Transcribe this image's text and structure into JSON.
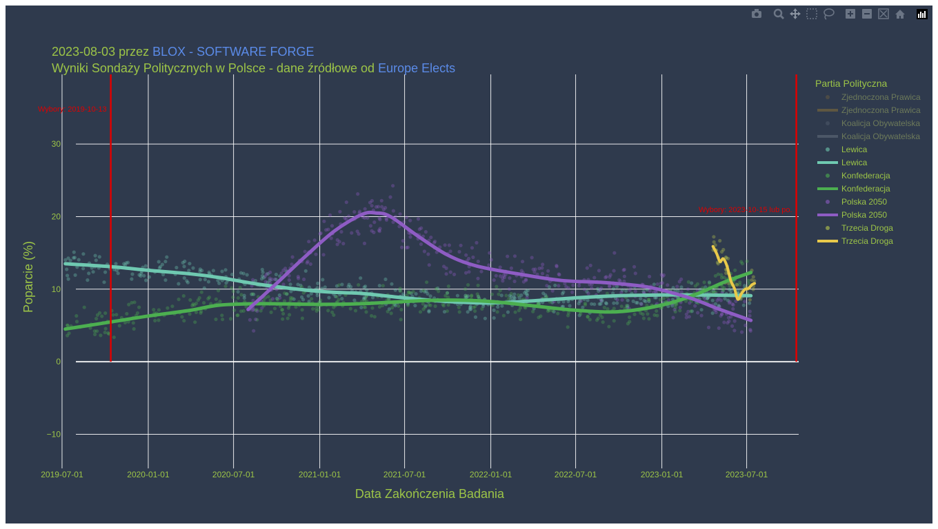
{
  "title": {
    "line1_prefix": "2023-08-03 przez ",
    "line1_link": "BLOX - SOFTWARE FORGE",
    "line2_prefix": "Wyniki Sondaży Politycznych w Polsce - dane źródłowe od ",
    "line2_link": "Europe Elects"
  },
  "modebar": {
    "buttons": [
      "camera-icon",
      "zoom-icon",
      "pan-icon",
      "box-select-icon",
      "lasso-select-icon",
      "zoom-in-icon",
      "zoom-out-icon",
      "autoscale-icon",
      "reset-axes-icon",
      "plotly-logo-icon"
    ]
  },
  "colors": {
    "background": "#2f3a4d",
    "text": "#8fbf3a",
    "link": "#5b8be8",
    "grid": "#ffffff",
    "election_line": "#e00000"
  },
  "chart_data": {
    "type": "scatter",
    "title": "Wyniki Sondaży Politycznych w Polsce - dane źródłowe od Europe Elects",
    "xlabel": "Data Zakończenia Badania",
    "ylabel": "Poparcie (%)",
    "x_type": "date",
    "xlim": [
      "2019-06-09",
      "2023-10-20"
    ],
    "ylim": [
      -14.7,
      39.6
    ],
    "xticks": [
      "2019-07-01",
      "2020-01-01",
      "2020-07-01",
      "2021-01-01",
      "2021-07-01",
      "2022-01-01",
      "2022-07-01",
      "2023-01-01",
      "2023-07-01"
    ],
    "yticks": [
      -10,
      0,
      10,
      20,
      30
    ],
    "grid": true,
    "legend_title": "Partia Polityczna",
    "legend_position": "right",
    "annotations": [
      {
        "text": "Wybory: 2019-10-13",
        "x": "2019-10-13"
      },
      {
        "text": "Wybory: 2023-10-15 lub po.",
        "x": "2023-10-15"
      }
    ],
    "legend": [
      {
        "label": "Zjednoczona Prawica",
        "kind": "markers",
        "color": "#9a7b33",
        "hidden": true
      },
      {
        "label": "Zjednoczona Prawica",
        "kind": "line",
        "color": "#9a7b33",
        "hidden": true
      },
      {
        "label": "Koalicja Obywatelska",
        "kind": "markers",
        "color": "#707a88",
        "hidden": true
      },
      {
        "label": "Koalicja Obywatelska",
        "kind": "line",
        "color": "#707a88",
        "hidden": true
      },
      {
        "label": "Lewica",
        "kind": "markers",
        "color": "#6fc9b1",
        "hidden": false
      },
      {
        "label": "Lewica",
        "kind": "line",
        "color": "#6fc9b1",
        "hidden": false
      },
      {
        "label": "Konfederacja",
        "kind": "markers",
        "color": "#4caf50",
        "hidden": false
      },
      {
        "label": "Konfederacja",
        "kind": "line",
        "color": "#4caf50",
        "hidden": false
      },
      {
        "label": "Polska 2050",
        "kind": "markers",
        "color": "#8e5cc4",
        "hidden": false
      },
      {
        "label": "Polska 2050",
        "kind": "line",
        "color": "#8e5cc4",
        "hidden": false
      },
      {
        "label": "Trzecia Droga",
        "kind": "markers",
        "color": "#b9c94d",
        "hidden": false
      },
      {
        "label": "Trzecia Droga",
        "kind": "line",
        "color": "#e9c94a",
        "hidden": false
      }
    ],
    "series": [
      {
        "name": "Lewica",
        "color": "#6fc9b1",
        "x": [
          "2019-07-08",
          "2019-10-15",
          "2020-01-01",
          "2020-04-01",
          "2020-06-01",
          "2020-09-01",
          "2021-01-01",
          "2021-04-01",
          "2021-07-01",
          "2021-10-01",
          "2022-01-01",
          "2022-04-01",
          "2022-07-01",
          "2022-10-01",
          "2023-01-01",
          "2023-04-01",
          "2023-07-10"
        ],
        "y": [
          13.5,
          13.1,
          12.6,
          12.1,
          11.6,
          10.6,
          9.7,
          9.4,
          8.8,
          8.3,
          8.1,
          8.4,
          8.8,
          9.1,
          9.2,
          9.2,
          9.1
        ]
      },
      {
        "name": "Konfederacja",
        "color": "#4caf50",
        "x": [
          "2019-07-08",
          "2019-10-15",
          "2020-01-01",
          "2020-04-01",
          "2020-06-01",
          "2020-09-01",
          "2021-01-01",
          "2021-04-01",
          "2021-07-01",
          "2021-10-01",
          "2022-01-01",
          "2022-04-01",
          "2022-07-01",
          "2022-10-01",
          "2023-01-01",
          "2023-03-15",
          "2023-05-15",
          "2023-07-10"
        ],
        "y": [
          4.5,
          5.5,
          6.3,
          7.1,
          7.8,
          8.0,
          7.9,
          8.0,
          8.3,
          8.5,
          8.3,
          7.7,
          7.1,
          6.9,
          7.8,
          9.3,
          11.0,
          12.3
        ]
      },
      {
        "name": "Polska 2050",
        "color": "#8e5cc4",
        "x": [
          "2020-08-01",
          "2020-10-01",
          "2020-12-01",
          "2021-02-01",
          "2021-04-01",
          "2021-05-01",
          "2021-06-01",
          "2021-08-01",
          "2021-10-01",
          "2021-12-01",
          "2022-03-01",
          "2022-06-01",
          "2022-09-01",
          "2022-12-01",
          "2023-03-01",
          "2023-05-01",
          "2023-07-10"
        ],
        "y": [
          7.2,
          10.8,
          14.5,
          18.0,
          20.3,
          20.5,
          20.0,
          17.2,
          14.7,
          13.2,
          12.1,
          11.2,
          10.9,
          10.3,
          8.8,
          7.3,
          5.7
        ]
      },
      {
        "name": "Trzecia Droga",
        "color": "#e9c94a",
        "x": [
          "2023-04-20",
          "2023-04-28",
          "2023-05-05",
          "2023-05-12",
          "2023-05-20",
          "2023-05-28",
          "2023-06-05",
          "2023-06-12",
          "2023-06-20",
          "2023-06-28",
          "2023-07-05",
          "2023-07-12",
          "2023-07-18"
        ],
        "y": [
          15.9,
          14.9,
          13.8,
          14.2,
          13.2,
          11.2,
          10.1,
          8.6,
          9.4,
          10.0,
          10.1,
          10.6,
          10.8
        ]
      }
    ]
  }
}
